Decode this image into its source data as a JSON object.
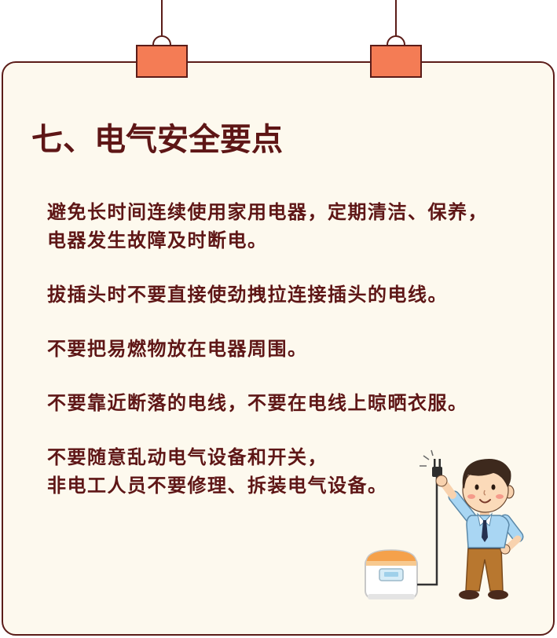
{
  "title": "七、电气安全要点",
  "tips": [
    {
      "lines": [
        "避免长时间连续使用家用电器，定期清洁、保养，",
        "电器发生故障及时断电。"
      ]
    },
    {
      "lines": [
        "拔插头时不要直接使劲拽拉连接插头的电线。"
      ]
    },
    {
      "lines": [
        "不要把易燃物放在电器周围。"
      ]
    },
    {
      "lines": [
        "不要靠近断落的电线，不要在电线上晾晒衣服。"
      ]
    },
    {
      "lines": [
        "不要随意乱动电气设备和开关，",
        "非电工人员不要修理、拆装电气设备。"
      ]
    }
  ],
  "colors": {
    "text": "#5e1616",
    "card_background": "#fdf9ee",
    "border": "#5b1c18",
    "tag": "#f47c55",
    "page_background": "#ffffff"
  },
  "icons": {
    "tags": "hanging-tag-icon",
    "plug": "plug-icon",
    "rice_cooker": "rice-cooker-icon",
    "person": "man-holding-plug-icon"
  }
}
